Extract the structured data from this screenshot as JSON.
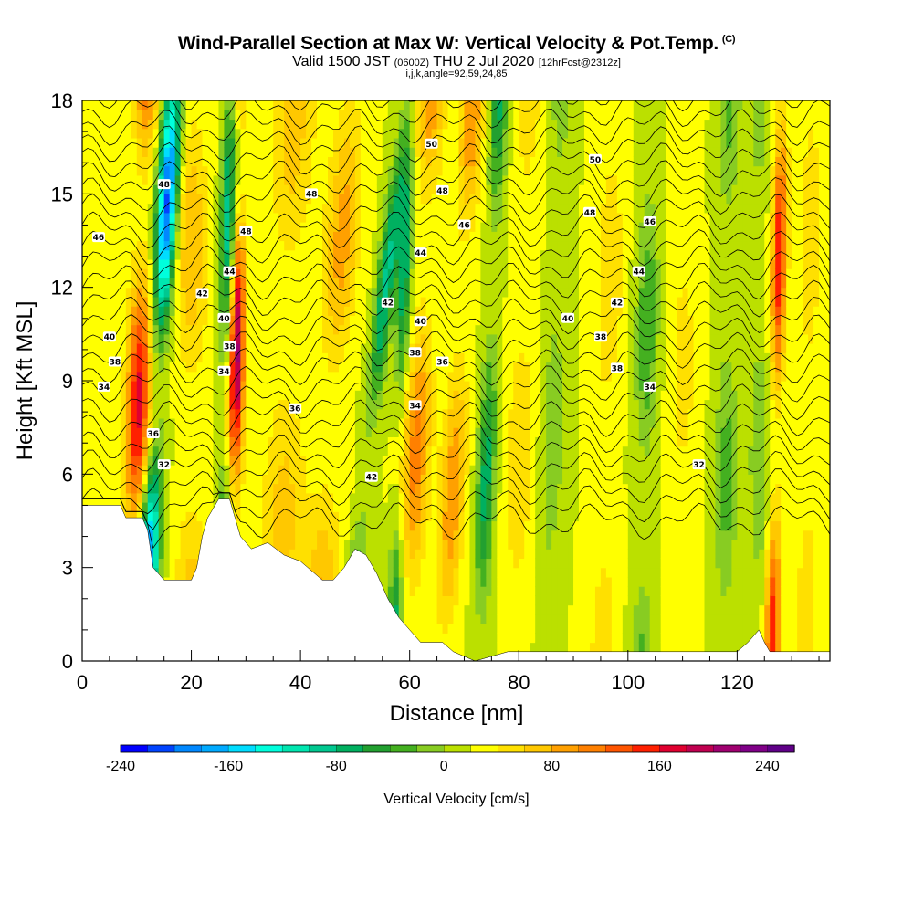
{
  "header": {
    "title": "Wind-Parallel Section at Max W: Vertical Velocity & Pot.Temp.",
    "copyright": "(C)",
    "valid_prefix": "Valid 1500 JST",
    "valid_utc": "(0600Z)",
    "valid_date": "THU 2 Jul 2020",
    "forecast": "[12hrFcst@2312z]",
    "info": "i,j,k,angle=92,59,24,85"
  },
  "chart_data": {
    "type": "heatmap",
    "xlabel": "Distance [nm]",
    "ylabel": "Height [Kft MSL]",
    "xlim": [
      0,
      137
    ],
    "ylim": [
      0,
      18
    ],
    "x_ticks": [
      0,
      20,
      40,
      60,
      80,
      100,
      120
    ],
    "y_ticks": [
      0,
      3,
      6,
      9,
      12,
      15,
      18
    ],
    "colorbar": {
      "label": "Vertical Velocity [cm/s]",
      "range": [
        -240,
        260
      ],
      "step": 20,
      "tick_values": [
        -240,
        -160,
        -80,
        0,
        80,
        160,
        240
      ],
      "colors": [
        "#0000ff",
        "#0044ff",
        "#0088ff",
        "#00aaff",
        "#00ddff",
        "#00ffdd",
        "#00e6b0",
        "#00c890",
        "#00b060",
        "#22a030",
        "#44b020",
        "#88cc22",
        "#bbe000",
        "#ffff00",
        "#ffe000",
        "#ffc800",
        "#ffa000",
        "#ff8000",
        "#ff5500",
        "#ff2000",
        "#e00030",
        "#c00050",
        "#a00070",
        "#800088",
        "#600088"
      ]
    },
    "terrain_profile": [
      [
        0,
        5
      ],
      [
        7,
        5
      ],
      [
        8,
        4.6
      ],
      [
        11,
        4.6
      ],
      [
        12,
        4.2
      ],
      [
        13,
        3
      ],
      [
        15,
        2.6
      ],
      [
        20,
        2.6
      ],
      [
        21,
        3
      ],
      [
        22,
        4
      ],
      [
        23,
        4.6
      ],
      [
        25,
        5.2
      ],
      [
        27,
        5.2
      ],
      [
        28,
        4.6
      ],
      [
        29,
        4
      ],
      [
        31,
        3.6
      ],
      [
        34,
        3.8
      ],
      [
        37,
        3.4
      ],
      [
        40,
        3.2
      ],
      [
        44,
        2.6
      ],
      [
        46,
        2.6
      ],
      [
        48,
        3
      ],
      [
        50,
        3.6
      ],
      [
        52,
        3.4
      ],
      [
        54,
        2.8
      ],
      [
        56,
        2
      ],
      [
        58,
        1.4
      ],
      [
        60,
        1
      ],
      [
        62,
        0.6
      ],
      [
        66,
        0.6
      ],
      [
        68,
        0.3
      ],
      [
        72,
        0
      ],
      [
        78,
        0.3
      ],
      [
        100,
        0.3
      ],
      [
        120,
        0.3
      ],
      [
        122,
        0.6
      ],
      [
        124,
        1
      ],
      [
        125,
        0.6
      ],
      [
        126,
        0.3
      ],
      [
        137,
        0.3
      ]
    ],
    "isentrope_labels": [
      {
        "text": "50",
        "x": 64,
        "y": 16.6
      },
      {
        "text": "50",
        "x": 94,
        "y": 16.1
      },
      {
        "text": "48",
        "x": 15,
        "y": 15.3
      },
      {
        "text": "48",
        "x": 42,
        "y": 15
      },
      {
        "text": "48",
        "x": 66,
        "y": 15.1
      },
      {
        "text": "48",
        "x": 93,
        "y": 14.4
      },
      {
        "text": "48",
        "x": 30,
        "y": 13.8
      },
      {
        "text": "46",
        "x": 3,
        "y": 13.6
      },
      {
        "text": "46",
        "x": 70,
        "y": 14
      },
      {
        "text": "46",
        "x": 104,
        "y": 14.1
      },
      {
        "text": "44",
        "x": 27,
        "y": 12.5
      },
      {
        "text": "44",
        "x": 62,
        "y": 13.1
      },
      {
        "text": "44",
        "x": 102,
        "y": 12.5
      },
      {
        "text": "42",
        "x": 22,
        "y": 11.8
      },
      {
        "text": "42",
        "x": 56,
        "y": 11.5
      },
      {
        "text": "42",
        "x": 98,
        "y": 11.5
      },
      {
        "text": "40",
        "x": 26,
        "y": 11
      },
      {
        "text": "40",
        "x": 5,
        "y": 10.4
      },
      {
        "text": "40",
        "x": 62,
        "y": 10.9
      },
      {
        "text": "40",
        "x": 89,
        "y": 11
      },
      {
        "text": "38",
        "x": 27,
        "y": 10.1
      },
      {
        "text": "38",
        "x": 6,
        "y": 9.6
      },
      {
        "text": "38",
        "x": 61,
        "y": 9.9
      },
      {
        "text": "38",
        "x": 95,
        "y": 10.4
      },
      {
        "text": "38",
        "x": 98,
        "y": 9.4
      },
      {
        "text": "36",
        "x": 66,
        "y": 9.6
      },
      {
        "text": "36",
        "x": 39,
        "y": 8.1
      },
      {
        "text": "36",
        "x": 13,
        "y": 7.3
      },
      {
        "text": "34",
        "x": 26,
        "y": 9.3
      },
      {
        "text": "34",
        "x": 4,
        "y": 8.8
      },
      {
        "text": "34",
        "x": 61,
        "y": 8.2
      },
      {
        "text": "34",
        "x": 104,
        "y": 8.8
      },
      {
        "text": "32",
        "x": 15,
        "y": 6.3
      },
      {
        "text": "32",
        "x": 113,
        "y": 6.3
      },
      {
        "text": "42",
        "x": 53,
        "y": 5.9
      }
    ]
  }
}
